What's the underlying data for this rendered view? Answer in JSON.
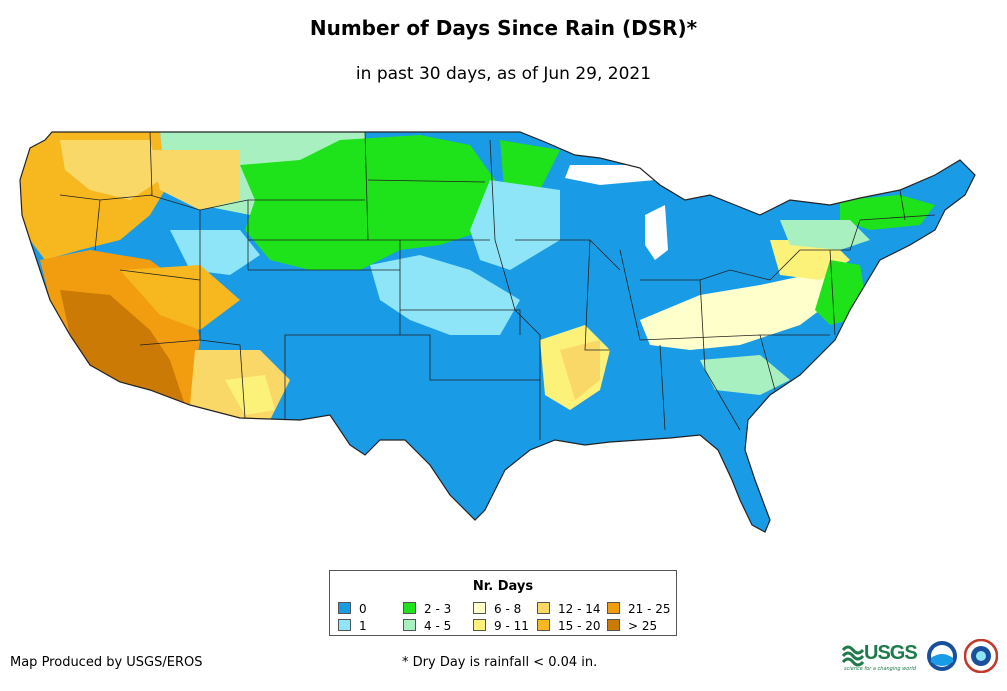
{
  "map": {
    "title": "Number of Days Since Rain (DSR)*",
    "subtitle": "in past 30 days, as of Jun 29, 2021",
    "region": "Contiguous United States"
  },
  "legend": {
    "title": "Nr. Days",
    "items": [
      {
        "label": "0",
        "color": "#1a9be6"
      },
      {
        "label": "1",
        "color": "#8ee5f8"
      },
      {
        "label": "2 - 3",
        "color": "#1ee21a"
      },
      {
        "label": "4 - 5",
        "color": "#a8f0c0"
      },
      {
        "label": "6 - 8",
        "color": "#ffffcc"
      },
      {
        "label": "9 - 11",
        "color": "#fcf27a"
      },
      {
        "label": "12 - 14",
        "color": "#f9d868"
      },
      {
        "label": "15 - 20",
        "color": "#f7b81f"
      },
      {
        "label": "21 - 25",
        "color": "#f29d10"
      },
      {
        "label": "> 25",
        "color": "#cc7a06"
      }
    ]
  },
  "footer": {
    "credit": "Map Produced by USGS/EROS",
    "footnote": "* Dry Day is rainfall < 0.04 in."
  },
  "logos": {
    "usgs_text": "USGS",
    "usgs_tagline": "science for a changing world",
    "noaa_name": "noaa-logo",
    "nws_name": "nws-logo"
  }
}
